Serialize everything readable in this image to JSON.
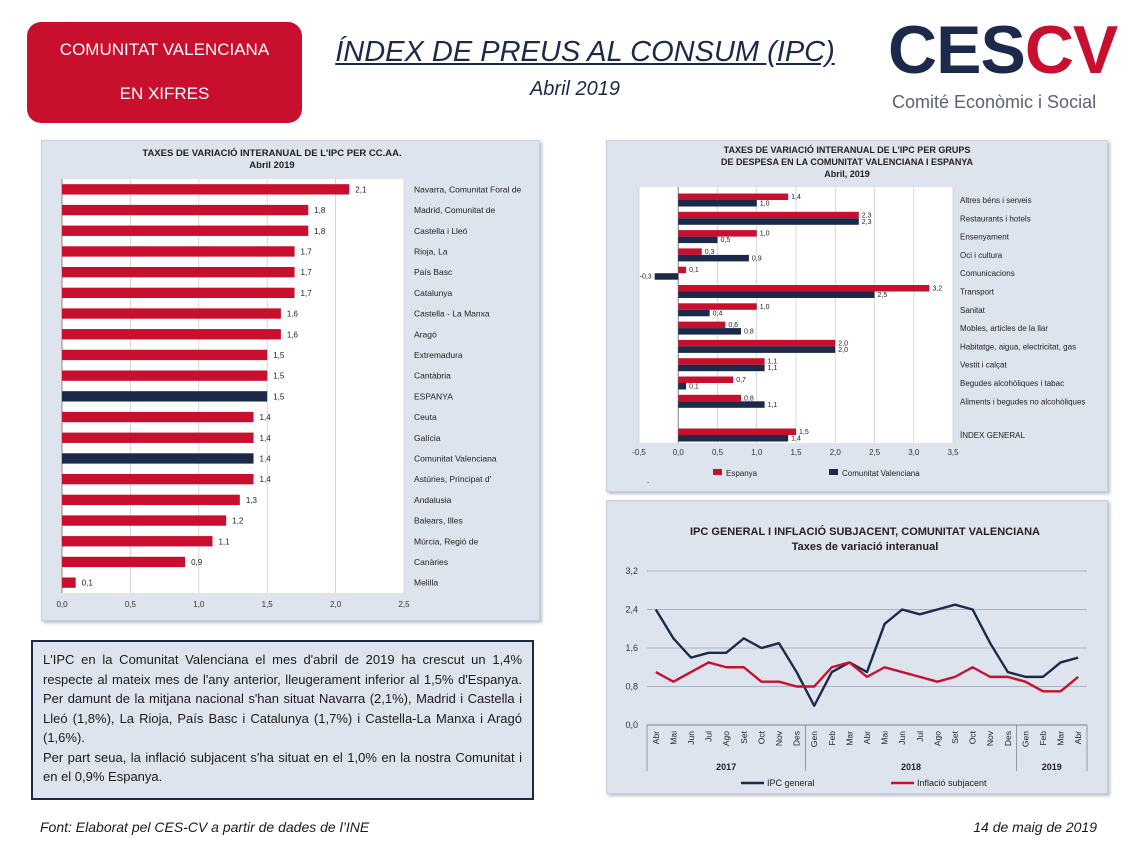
{
  "header": {
    "badge_line1": "COMUNITAT VALENCIANA",
    "badge_line2": "EN XIFRES",
    "title": "ÍNDEX DE PREUS AL CONSUM (IPC)",
    "subtitle": "Abril 2019",
    "logo_ces": "CES",
    "logo_cv": "CV",
    "logo_tagline": "Comité Econòmic i Social"
  },
  "colors": {
    "red": "#c8102e",
    "navy": "#1b2a4a",
    "panel_bg": "#dde4ee"
  },
  "chart_data": [
    {
      "type": "bar",
      "orientation": "horizontal",
      "title": "TAXES DE VARIACIÓ INTERANUAL DE L'IPC PER CC.AA.",
      "subtitle": "Abril 2019",
      "categories": [
        "Navarra, Comunitat Foral de",
        "Madrid, Comunitat de",
        "Castella i Lleó",
        "Rioja, La",
        "País Basc",
        "Catalunya",
        "Castella - La Manxa",
        "Aragó",
        "Extremadura",
        "Cantàbria",
        "ESPANYA",
        "Ceuta",
        "Galícia",
        "Comunitat Valenciana",
        "Astúries, Principat d'",
        "Andalusia",
        "Balears, Illes",
        "Múrcia, Regió de",
        "Canàries",
        "Melilla"
      ],
      "values": [
        2.1,
        1.8,
        1.8,
        1.7,
        1.7,
        1.7,
        1.6,
        1.6,
        1.5,
        1.5,
        1.5,
        1.4,
        1.4,
        1.4,
        1.4,
        1.3,
        1.2,
        1.1,
        0.9,
        0.1
      ],
      "value_labels": [
        "2,1",
        "1,8",
        "1,8",
        "1,7",
        "1,7",
        "1,7",
        "1,6",
        "1,6",
        "1,5",
        "1,5",
        "1,5",
        "1,4",
        "1,4",
        "1,4",
        "1,4",
        "1,3",
        "1,2",
        "1,1",
        "0,9",
        "0,1"
      ],
      "highlight": [
        "ESPANYA",
        "Comunitat Valenciana"
      ],
      "xlim": [
        0,
        2.5
      ],
      "xticks": [
        "0,0",
        "0,5",
        "1,0",
        "1,5",
        "2,0",
        "2,5"
      ],
      "grid": true
    },
    {
      "type": "bar",
      "orientation": "horizontal",
      "title_line1": "TAXES DE VARIACIÓ INTERANUAL DE L'IPC PER GRUPS",
      "title_line2": "DE DESPESA EN LA COMUNITAT VALENCIANA I ESPANYA",
      "subtitle": "Abril, 2019",
      "categories": [
        "Altres béns i serveis",
        "Restaurants i hotels",
        "Ensenyament",
        "Oci i cultura",
        "Comunicacions",
        "Transport",
        "Sanitat",
        "Mobles, articles de la llar",
        "Habitatge, aigua, electricitat, gas",
        "Vestit i calçat",
        "Begudes alcohòliques i tabac",
        "Aliments i begudes no alcohòliques",
        "ÍNDEX GENERAL"
      ],
      "series": [
        {
          "name": "Espanya",
          "values": [
            1.4,
            2.3,
            1.0,
            0.3,
            0.1,
            3.2,
            1.0,
            0.6,
            2.0,
            1.1,
            0.7,
            0.8,
            1.5
          ],
          "labels": [
            "1,4",
            "2,3",
            "1,0",
            "0,3",
            "0,1",
            "3,2",
            "1,0",
            "0,6",
            "2,0",
            "1,1",
            "0,7",
            "0,8",
            "1,5"
          ]
        },
        {
          "name": "Comunitat Valenciana",
          "values": [
            1.0,
            2.3,
            0.5,
            0.9,
            -0.3,
            2.5,
            0.4,
            0.8,
            2.0,
            1.1,
            0.1,
            1.1,
            1.4
          ],
          "labels": [
            "1,0",
            "2,3",
            "0,5",
            "0,9",
            "-0,3",
            "2,5",
            "0,4",
            "0,8",
            "2,0",
            "1,1",
            "0,1",
            "1,1",
            "1,4"
          ]
        }
      ],
      "xlim": [
        -0.5,
        3.5
      ],
      "xticks": [
        "-0,5",
        "0,0",
        "0,5",
        "1,0",
        "1,5",
        "2,0",
        "2,5",
        "3,0",
        "3,5"
      ],
      "legend": "bottom",
      "legend_extra": "."
    },
    {
      "type": "line",
      "title": "IPC GENERAL I INFLACIÓ SUBJACENT, COMUNITAT VALENCIANA",
      "subtitle": "Taxes de variació interanual",
      "x": [
        "Abr",
        "Mai",
        "Jun",
        "Jul",
        "Ago",
        "Set",
        "Oct",
        "Nov",
        "Des",
        "Gen",
        "Feb",
        "Mar",
        "Abr",
        "Mai",
        "Jun",
        "Jul",
        "Ago",
        "Set",
        "Oct",
        "Nov",
        "Des",
        "Gen",
        "Feb",
        "Mar",
        "Abr"
      ],
      "year_groups": [
        {
          "label": "2017",
          "start": 0,
          "end": 8
        },
        {
          "label": "2018",
          "start": 9,
          "end": 20
        },
        {
          "label": "2019",
          "start": 21,
          "end": 24
        }
      ],
      "series": [
        {
          "name": "IPC general",
          "color": "#1b2a4a",
          "values": [
            2.4,
            1.8,
            1.4,
            1.5,
            1.5,
            1.8,
            1.6,
            1.7,
            1.1,
            0.4,
            1.1,
            1.3,
            1.1,
            2.1,
            2.4,
            2.3,
            2.4,
            2.5,
            2.4,
            1.7,
            1.1,
            1.0,
            1.0,
            1.3,
            1.4
          ]
        },
        {
          "name": "Inflació subjacent",
          "color": "#c8102e",
          "values": [
            1.1,
            0.9,
            1.1,
            1.3,
            1.2,
            1.2,
            0.9,
            0.9,
            0.8,
            0.8,
            1.2,
            1.3,
            1.0,
            1.2,
            1.1,
            1.0,
            0.9,
            1.0,
            1.2,
            1.0,
            1.0,
            0.9,
            0.7,
            0.7,
            1.0
          ]
        }
      ],
      "ylim": [
        0,
        3.2
      ],
      "yticks": [
        "0,0",
        "0,8",
        "1,6",
        "2,4",
        "3,2"
      ],
      "legend": "bottom",
      "grid": true
    }
  ],
  "text_box": {
    "p1": "L'IPC en la Comunitat Valenciana el mes d'abril de 2019 ha crescut un 1,4% respecte al mateix mes de l'any anterior, lleugerament inferior al 1,5% d'Espanya. Per damunt de la mitjana nacional s'han situat Navarra (2,1%), Madrid i Castella i Lleó (1,8%), La Rioja, País Basc i Catalunya (1,7%) i Castella-La Manxa i Aragó (1,6%).",
    "p2": "Per part seua, la inflació subjacent s'ha situat en el 1,0% en la nostra Comunitat i en el 0,9% Espanya."
  },
  "footer": {
    "source": "Font: Elaborat pel CES-CV a partir de dades de l’INE",
    "date": "14 de maig de 2019"
  }
}
